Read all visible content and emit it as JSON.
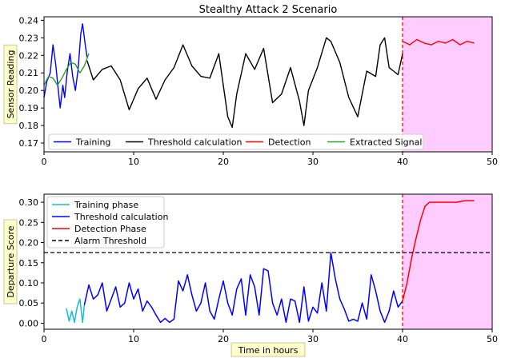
{
  "colors": {
    "training": "#0000ff",
    "threshold_calc": "#000000",
    "detection": "#ff0000",
    "extracted": "#2ca02c",
    "training_phase": "#17becf",
    "alarm": "#000000",
    "detection_shade": "#ffccff",
    "marker_line": "#ff0000",
    "label_box": "#ffffcc",
    "label_box_border": "#c8c896"
  },
  "chart_data": [
    {
      "type": "line",
      "title": "Stealthy Attack 2 Scenario",
      "xlabel": "",
      "ylabel": "Sensor Reading",
      "xlim": [
        0,
        50
      ],
      "ylim": [
        0.165,
        0.242
      ],
      "xticks": [
        0,
        10,
        20,
        30,
        40,
        50
      ],
      "yticks": [
        0.17,
        0.18,
        0.19,
        0.2,
        0.21,
        0.22,
        0.23,
        0.24
      ],
      "xtick_labels": [
        "0",
        "10",
        "20",
        "30",
        "40",
        "50"
      ],
      "ytick_labels": [
        "0.17",
        "0.18",
        "0.19",
        "0.20",
        "0.21",
        "0.22",
        "0.23",
        "0.24"
      ],
      "detection_region": [
        40,
        50
      ],
      "marker_x": 40,
      "legend_position": "lower center",
      "series": [
        {
          "name": "Training",
          "color_key": "training",
          "x": [
            0,
            0.3,
            0.7,
            1.0,
            1.3,
            1.6,
            1.8,
            2.1,
            2.3,
            2.6,
            2.9,
            3.2,
            3.5,
            3.8,
            4.1,
            4.3,
            4.6,
            4.8
          ],
          "y": [
            0.196,
            0.205,
            0.21,
            0.226,
            0.215,
            0.2,
            0.19,
            0.203,
            0.196,
            0.211,
            0.221,
            0.208,
            0.2,
            0.212,
            0.232,
            0.238,
            0.226,
            0.219
          ]
        },
        {
          "name": "Threshold calculation",
          "color_key": "threshold_calc",
          "x": [
            4.8,
            5.5,
            6.5,
            7.5,
            8.5,
            9.5,
            10.5,
            11.5,
            12.5,
            13.5,
            14.5,
            15.5,
            16.5,
            17.5,
            18.5,
            19.5,
            20.5,
            21.0,
            21.5,
            22.5,
            23.5,
            24.5,
            25.5,
            26.5,
            27.5,
            28.5,
            29.0,
            29.5,
            30.5,
            31.5,
            32.0,
            33.0,
            34.0,
            35.0,
            36.0,
            37.0,
            37.5,
            38.0,
            38.5,
            39.0,
            39.5,
            40.0
          ],
          "y": [
            0.217,
            0.206,
            0.212,
            0.214,
            0.206,
            0.189,
            0.201,
            0.207,
            0.195,
            0.206,
            0.213,
            0.226,
            0.214,
            0.208,
            0.207,
            0.221,
            0.185,
            0.179,
            0.198,
            0.221,
            0.212,
            0.224,
            0.193,
            0.198,
            0.213,
            0.194,
            0.18,
            0.2,
            0.213,
            0.23,
            0.228,
            0.216,
            0.196,
            0.185,
            0.211,
            0.208,
            0.226,
            0.23,
            0.213,
            0.211,
            0.209,
            0.221
          ]
        },
        {
          "name": "Detection",
          "color_key": "detection",
          "x": [
            40.0,
            40.8,
            41.6,
            42.4,
            43.2,
            44.0,
            44.8,
            45.6,
            46.4,
            47.2,
            48.0
          ],
          "y": [
            0.228,
            0.226,
            0.229,
            0.227,
            0.226,
            0.228,
            0.227,
            0.229,
            0.226,
            0.228,
            0.227
          ]
        },
        {
          "name": "Extracted Signal",
          "color_key": "extracted",
          "x": [
            0,
            0.5,
            1.0,
            1.5,
            2.0,
            2.5,
            3.0,
            3.5,
            4.0,
            4.5,
            5.0
          ],
          "y": [
            0.203,
            0.208,
            0.207,
            0.203,
            0.207,
            0.212,
            0.216,
            0.215,
            0.21,
            0.214,
            0.221
          ]
        }
      ]
    },
    {
      "type": "line",
      "title": "",
      "xlabel": "Time in hours",
      "ylabel": "Departure Score",
      "xlim": [
        0,
        50
      ],
      "ylim": [
        -0.015,
        0.32
      ],
      "xticks": [
        0,
        10,
        20,
        30,
        40,
        50
      ],
      "yticks": [
        0.0,
        0.05,
        0.1,
        0.15,
        0.2,
        0.25,
        0.3
      ],
      "xtick_labels": [
        "0",
        "10",
        "20",
        "30",
        "40",
        "50"
      ],
      "ytick_labels": [
        "0.00",
        "0.05",
        "0.10",
        "0.15",
        "0.20",
        "0.25",
        "0.30"
      ],
      "detection_region": [
        40,
        50
      ],
      "marker_x": 40,
      "alarm_threshold": 0.175,
      "legend_position": "upper left",
      "series": [
        {
          "name": "Training phase",
          "color_key": "training_phase",
          "x": [
            2.5,
            2.8,
            3.1,
            3.4,
            3.7,
            4.0,
            4.3,
            4.5
          ],
          "y": [
            0.037,
            0.005,
            0.03,
            0.002,
            0.04,
            0.06,
            0.002,
            0.045
          ]
        },
        {
          "name": "Threshold calculation",
          "color_key": "training",
          "x": [
            4.5,
            5.0,
            5.5,
            6.0,
            6.5,
            7.0,
            7.5,
            8.0,
            8.5,
            9.0,
            9.5,
            10.0,
            10.5,
            11.0,
            11.5,
            12.0,
            12.5,
            13.0,
            13.5,
            14.0,
            14.5,
            15.0,
            15.5,
            16.0,
            16.5,
            17.0,
            17.5,
            18.0,
            18.5,
            19.0,
            19.5,
            20.0,
            20.5,
            21.0,
            21.5,
            22.0,
            22.5,
            23.0,
            23.5,
            24.0,
            24.5,
            25.0,
            25.5,
            26.0,
            26.5,
            27.0,
            27.5,
            28.0,
            28.5,
            29.0,
            29.5,
            30.0,
            30.5,
            31.0,
            31.5,
            32.0,
            32.5,
            33.0,
            33.5,
            34.0,
            34.5,
            35.0,
            35.5,
            36.0,
            36.5,
            37.0,
            37.5,
            38.0,
            38.5,
            39.0,
            39.5,
            40.0
          ],
          "y": [
            0.045,
            0.095,
            0.06,
            0.07,
            0.1,
            0.03,
            0.06,
            0.09,
            0.04,
            0.05,
            0.1,
            0.06,
            0.085,
            0.03,
            0.055,
            0.04,
            0.02,
            0.002,
            0.012,
            0.002,
            0.01,
            0.105,
            0.08,
            0.12,
            0.07,
            0.03,
            0.05,
            0.1,
            0.03,
            0.01,
            0.06,
            0.105,
            0.05,
            0.02,
            0.085,
            0.11,
            0.02,
            0.12,
            0.09,
            0.02,
            0.135,
            0.13,
            0.05,
            0.02,
            0.06,
            0.002,
            0.06,
            0.055,
            0.002,
            0.09,
            0.005,
            0.04,
            0.025,
            0.1,
            0.03,
            0.175,
            0.11,
            0.06,
            0.035,
            0.005,
            0.01,
            0.005,
            0.05,
            0.01,
            0.12,
            0.08,
            0.03,
            0.002,
            0.03,
            0.08,
            0.04,
            0.055
          ]
        },
        {
          "name": "Detection Phase",
          "color_key": "detection",
          "x": [
            40.0,
            40.5,
            41.0,
            41.5,
            42.0,
            42.5,
            43.0,
            43.5,
            44.0,
            45.0,
            46.0,
            47.0,
            48.0
          ],
          "y": [
            0.055,
            0.1,
            0.16,
            0.21,
            0.255,
            0.29,
            0.3,
            0.3,
            0.3,
            0.3,
            0.3,
            0.304,
            0.304
          ]
        }
      ],
      "threshold_legend_name": "Alarm Threshold"
    }
  ]
}
